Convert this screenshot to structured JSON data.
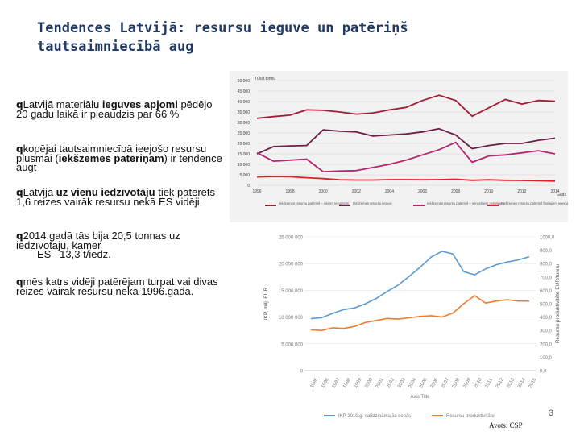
{
  "slide": {
    "title_line1": "Tendences Latvijā: resursu ieguve un patēriņš",
    "title_line2": "tautsaimniecībā aug",
    "page_number": "3",
    "source": "Avots: CSP"
  },
  "bullets": [
    {
      "parts": [
        {
          "t": "Latvijā materiālu "
        },
        {
          "t": "ieguves",
          "b": true
        },
        {
          "t": " "
        },
        {
          "t": "apjomi",
          "b": true
        },
        {
          "t": " pēdējo 20 gadu laikā ir pieaudzis par 66 %"
        }
      ]
    },
    {
      "parts": [
        {
          "t": "kopējai tautsaimniecībā ieejošo resursu plūsmai ("
        },
        {
          "t": "iekšzemes patēriņam",
          "b": true
        },
        {
          "t": ") ir tendence augt"
        }
      ]
    },
    {
      "parts": [
        {
          "t": "Latvijā "
        },
        {
          "t": "uz vienu iedzīvotāju",
          "b": true
        },
        {
          "t": " tiek patērēts 1,6 reizes vairāk resursu nekā ES vidēji."
        }
      ]
    },
    {
      "parts": [
        {
          "t": "2014.gadā tās bija 20,5 tonnas uz iedzīvotāju, kamēr"
        }
      ],
      "extra": "ES –13,3 t/iedz."
    },
    {
      "parts": [
        {
          "t": "mēs katrs vidēji patērējam turpat vai divas reizes vairāk resursu nekā 1996.gadā."
        }
      ]
    }
  ],
  "chart_data": [
    {
      "type": "line",
      "ylabel": "Tūkst.tonnu",
      "xlabel": "Gads",
      "ylim": [
        0,
        50000
      ],
      "yticks": [
        "0",
        "5 000",
        "10 000",
        "15 000",
        "20 000",
        "25 000",
        "30 000",
        "35 000",
        "40 000",
        "45 000",
        "50 000"
      ],
      "x": [
        1996,
        1997,
        1998,
        1999,
        2000,
        2001,
        2002,
        2003,
        2004,
        2005,
        2006,
        2007,
        2008,
        2009,
        2010,
        2011,
        2012,
        2013,
        2014
      ],
      "xticklabels": [
        "1996",
        "1998",
        "2000",
        "2002",
        "2004",
        "2006",
        "2008",
        "2010",
        "2012",
        "2014"
      ],
      "grid": true,
      "legend_position": "bottom",
      "series": [
        {
          "name": "Iekšzemes resursu patēriņš – visiem resursiem",
          "color": "#a21c37",
          "values": [
            32000,
            32800,
            33500,
            36000,
            35800,
            35000,
            34000,
            34500,
            36000,
            37200,
            40500,
            43000,
            40500,
            33000,
            37000,
            41000,
            38800,
            40500,
            40100
          ]
        },
        {
          "name": "Iekšzemes resursu ieguve",
          "color": "#6d1e4a",
          "values": [
            15000,
            18500,
            18800,
            19000,
            26500,
            25800,
            25500,
            23500,
            24000,
            24500,
            25500,
            27000,
            24000,
            17500,
            19000,
            20000,
            20000,
            21500,
            22500
          ]
        },
        {
          "name": "Iekšzemes resursu patēriņš – minerāliem resursiem",
          "color": "#b8266f",
          "values": [
            15500,
            11500,
            12000,
            12500,
            6500,
            6800,
            7000,
            8500,
            10000,
            12000,
            14500,
            17000,
            20500,
            11000,
            14000,
            14500,
            15500,
            16500,
            15000
          ]
        },
        {
          "name": "Iekšzemes resursu patēriņš fosilajiem energijas resursiem",
          "color": "#e32026",
          "values": [
            4000,
            4200,
            4100,
            3600,
            3200,
            2600,
            2500,
            2500,
            2700,
            2700,
            2600,
            2700,
            2900,
            2400,
            2600,
            2400,
            2300,
            2200,
            2000
          ]
        }
      ]
    },
    {
      "type": "line",
      "xlabel": "Axis Title",
      "ylabel": "IKP, milj. EUR",
      "ylabel_right": "Resursu produktivitāte EUR/tonnu",
      "ylim": [
        0,
        25000000
      ],
      "ylim_right": [
        0,
        1000
      ],
      "yticks": [
        "0",
        "5 000 000",
        "10 000 000",
        "15 000 000",
        "20 000 000",
        "25 000 000"
      ],
      "yticks_right": [
        "0,0",
        "100,0",
        "200,0",
        "300,0",
        "400,0",
        "500,0",
        "600,0",
        "700,0",
        "800,0",
        "900,0",
        "1000,0"
      ],
      "x": [
        "1995",
        "1996",
        "1997",
        "1998",
        "1999",
        "2000",
        "2001",
        "2002",
        "2003",
        "2004",
        "2005",
        "2006",
        "2007",
        "2008",
        "2009",
        "2010",
        "2011",
        "2012",
        "2013",
        "2014",
        "2015"
      ],
      "grid": true,
      "legend_position": "bottom",
      "series": [
        {
          "name": "IKP 2010.g. salīdzināmajās cenās",
          "color": "#5b9bd5",
          "axis": "left",
          "values": [
            9700000,
            9900000,
            10700000,
            11400000,
            11700000,
            12500000,
            13500000,
            14800000,
            16000000,
            17600000,
            19300000,
            21200000,
            22300000,
            21800000,
            18500000,
            17900000,
            19000000,
            19800000,
            20300000,
            20700000,
            21300000
          ]
        },
        {
          "name": "Resursu produktivitāte",
          "color": "#ed7d31",
          "axis": "right",
          "values": [
            305,
            300,
            320,
            315,
            330,
            360,
            375,
            390,
            385,
            395,
            405,
            410,
            400,
            430,
            500,
            560,
            505,
            520,
            530,
            520,
            520
          ]
        }
      ]
    }
  ]
}
